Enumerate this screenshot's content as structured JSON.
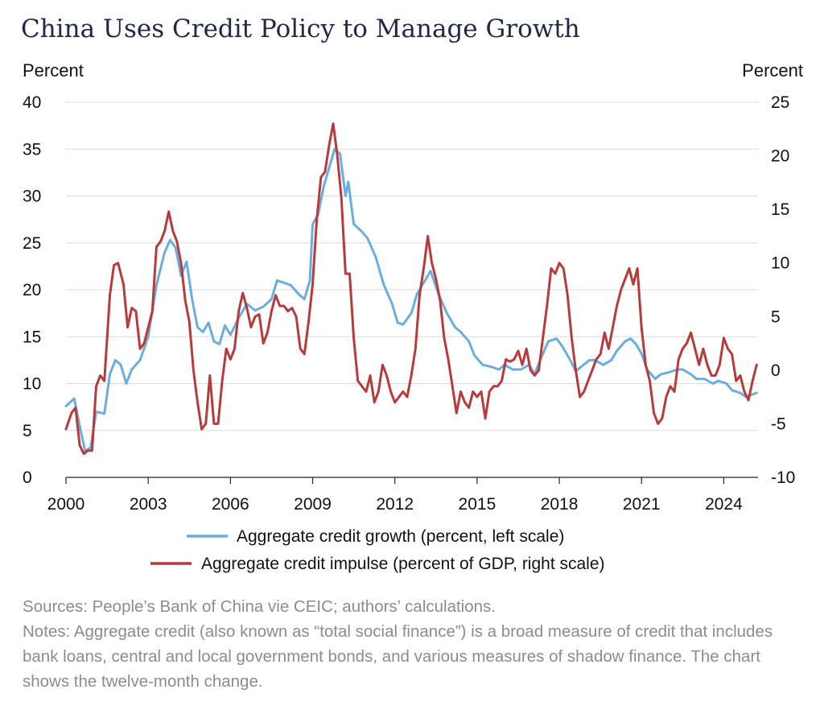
{
  "title": "China Uses Credit Policy to Manage Growth",
  "sources": "Sources: People’s Bank of China vie CEIC; authors’ calculations.",
  "notes": "Notes: Aggregate credit (also known as “total social finance”) is a broad measure of credit that includes bank loans, central and local government bonds, and various measures of shadow finance. The chart shows the twelve-month change.",
  "colors": {
    "growth": "#6aaee0",
    "impulse": "#b83a3a",
    "grid": "#dcdcdc",
    "axis": "#222222"
  },
  "chart_data": {
    "type": "line",
    "grid": true,
    "legend_position": "bottom",
    "left_axis": {
      "label": "Percent",
      "range": [
        0,
        40
      ],
      "ticks": [
        0,
        5,
        10,
        15,
        20,
        25,
        30,
        35,
        40
      ]
    },
    "right_axis": {
      "label": "Percent",
      "range": [
        -10,
        25
      ],
      "ticks": [
        -10,
        -5,
        0,
        5,
        10,
        15,
        20,
        25
      ]
    },
    "x_axis": {
      "range": [
        2000,
        2025.25
      ],
      "ticks": [
        "2000",
        "2003",
        "2006",
        "2009",
        "2012",
        "2015",
        "2018",
        "2021",
        "2024"
      ]
    },
    "series": [
      {
        "name": "Aggregate credit growth (percent, left scale)",
        "axis": "left",
        "points": [
          [
            2000.0,
            7.6
          ],
          [
            2000.3,
            8.4
          ],
          [
            2000.5,
            5.5
          ],
          [
            2000.7,
            2.8
          ],
          [
            2000.9,
            3.2
          ],
          [
            2001.1,
            7.0
          ],
          [
            2001.4,
            6.8
          ],
          [
            2001.6,
            11.0
          ],
          [
            2001.8,
            12.5
          ],
          [
            2002.0,
            12.0
          ],
          [
            2002.2,
            10.0
          ],
          [
            2002.4,
            11.5
          ],
          [
            2002.7,
            12.5
          ],
          [
            2003.0,
            15.0
          ],
          [
            2003.3,
            20.5
          ],
          [
            2003.6,
            24.0
          ],
          [
            2003.8,
            25.3
          ],
          [
            2004.0,
            24.5
          ],
          [
            2004.2,
            21.5
          ],
          [
            2004.4,
            23.0
          ],
          [
            2004.6,
            19.0
          ],
          [
            2004.8,
            16.0
          ],
          [
            2005.0,
            15.5
          ],
          [
            2005.2,
            16.5
          ],
          [
            2005.4,
            14.5
          ],
          [
            2005.6,
            14.2
          ],
          [
            2005.8,
            16.2
          ],
          [
            2006.0,
            15.2
          ],
          [
            2006.3,
            17.0
          ],
          [
            2006.6,
            18.5
          ],
          [
            2006.9,
            17.8
          ],
          [
            2007.2,
            18.2
          ],
          [
            2007.5,
            19.0
          ],
          [
            2007.7,
            21.0
          ],
          [
            2007.9,
            20.8
          ],
          [
            2008.2,
            20.5
          ],
          [
            2008.5,
            19.5
          ],
          [
            2008.7,
            19.0
          ],
          [
            2008.9,
            21.0
          ],
          [
            2009.0,
            27.0
          ],
          [
            2009.2,
            28.0
          ],
          [
            2009.4,
            31.0
          ],
          [
            2009.6,
            33.0
          ],
          [
            2009.8,
            35.0
          ],
          [
            2010.0,
            34.5
          ],
          [
            2010.2,
            30.0
          ],
          [
            2010.3,
            31.5
          ],
          [
            2010.5,
            27.0
          ],
          [
            2010.8,
            26.2
          ],
          [
            2011.0,
            25.5
          ],
          [
            2011.3,
            23.5
          ],
          [
            2011.6,
            20.5
          ],
          [
            2011.9,
            18.5
          ],
          [
            2012.1,
            16.5
          ],
          [
            2012.3,
            16.3
          ],
          [
            2012.6,
            17.5
          ],
          [
            2012.8,
            19.5
          ],
          [
            2013.1,
            21.0
          ],
          [
            2013.3,
            22.0
          ],
          [
            2013.6,
            19.5
          ],
          [
            2013.9,
            17.5
          ],
          [
            2014.2,
            16.0
          ],
          [
            2014.4,
            15.5
          ],
          [
            2014.7,
            14.5
          ],
          [
            2014.9,
            13.0
          ],
          [
            2015.2,
            12.0
          ],
          [
            2015.5,
            11.8
          ],
          [
            2015.8,
            11.5
          ],
          [
            2016.0,
            12.0
          ],
          [
            2016.3,
            11.5
          ],
          [
            2016.6,
            11.5
          ],
          [
            2016.9,
            12.0
          ],
          [
            2017.1,
            11.0
          ],
          [
            2017.3,
            12.5
          ],
          [
            2017.6,
            14.5
          ],
          [
            2017.9,
            14.8
          ],
          [
            2018.1,
            14.0
          ],
          [
            2018.4,
            12.5
          ],
          [
            2018.6,
            11.3
          ],
          [
            2018.8,
            11.8
          ],
          [
            2019.1,
            12.5
          ],
          [
            2019.3,
            12.5
          ],
          [
            2019.6,
            12.0
          ],
          [
            2019.9,
            12.5
          ],
          [
            2020.1,
            13.5
          ],
          [
            2020.4,
            14.5
          ],
          [
            2020.6,
            14.8
          ],
          [
            2020.8,
            14.2
          ],
          [
            2021.0,
            13.2
          ],
          [
            2021.2,
            11.5
          ],
          [
            2021.5,
            10.5
          ],
          [
            2021.7,
            11.0
          ],
          [
            2022.0,
            11.2
          ],
          [
            2022.3,
            11.5
          ],
          [
            2022.5,
            11.5
          ],
          [
            2022.8,
            11.0
          ],
          [
            2023.0,
            10.5
          ],
          [
            2023.3,
            10.5
          ],
          [
            2023.6,
            10.0
          ],
          [
            2023.8,
            10.3
          ],
          [
            2024.1,
            10.0
          ],
          [
            2024.3,
            9.3
          ],
          [
            2024.6,
            9.0
          ],
          [
            2024.8,
            8.6
          ],
          [
            2025.0,
            8.8
          ],
          [
            2025.2,
            9.0
          ]
        ]
      },
      {
        "name": "Aggregate credit impulse (percent of GDP, right scale)",
        "axis": "right",
        "points": [
          [
            2000.0,
            -5.5
          ],
          [
            2000.2,
            -4.0
          ],
          [
            2000.35,
            -3.5
          ],
          [
            2000.5,
            -7.0
          ],
          [
            2000.65,
            -7.8
          ],
          [
            2000.8,
            -7.5
          ],
          [
            2000.95,
            -7.5
          ],
          [
            2001.1,
            -1.5
          ],
          [
            2001.25,
            -0.5
          ],
          [
            2001.4,
            -1.0
          ],
          [
            2001.6,
            7.0
          ],
          [
            2001.75,
            9.8
          ],
          [
            2001.9,
            10.0
          ],
          [
            2002.1,
            8.0
          ],
          [
            2002.25,
            4.0
          ],
          [
            2002.4,
            5.8
          ],
          [
            2002.55,
            5.5
          ],
          [
            2002.7,
            2.0
          ],
          [
            2002.85,
            2.5
          ],
          [
            2003.0,
            4.0
          ],
          [
            2003.15,
            5.5
          ],
          [
            2003.3,
            11.5
          ],
          [
            2003.45,
            12.0
          ],
          [
            2003.6,
            13.0
          ],
          [
            2003.75,
            14.8
          ],
          [
            2003.9,
            13.0
          ],
          [
            2004.05,
            12.0
          ],
          [
            2004.2,
            10.0
          ],
          [
            2004.35,
            6.5
          ],
          [
            2004.5,
            4.5
          ],
          [
            2004.65,
            0.0
          ],
          [
            2004.8,
            -3.0
          ],
          [
            2004.95,
            -5.5
          ],
          [
            2005.1,
            -5.0
          ],
          [
            2005.25,
            -0.5
          ],
          [
            2005.4,
            -5.0
          ],
          [
            2005.55,
            -5.0
          ],
          [
            2005.7,
            -1.0
          ],
          [
            2005.85,
            2.0
          ],
          [
            2006.0,
            1.0
          ],
          [
            2006.15,
            2.0
          ],
          [
            2006.3,
            5.5
          ],
          [
            2006.45,
            7.2
          ],
          [
            2006.6,
            5.8
          ],
          [
            2006.75,
            4.0
          ],
          [
            2006.9,
            5.0
          ],
          [
            2007.05,
            5.2
          ],
          [
            2007.2,
            2.5
          ],
          [
            2007.35,
            3.5
          ],
          [
            2007.5,
            5.5
          ],
          [
            2007.65,
            7.0
          ],
          [
            2007.8,
            6.0
          ],
          [
            2007.95,
            6.0
          ],
          [
            2008.1,
            5.5
          ],
          [
            2008.25,
            5.8
          ],
          [
            2008.4,
            5.0
          ],
          [
            2008.55,
            2.0
          ],
          [
            2008.7,
            1.5
          ],
          [
            2008.85,
            4.5
          ],
          [
            2009.0,
            8.0
          ],
          [
            2009.15,
            14.0
          ],
          [
            2009.3,
            18.0
          ],
          [
            2009.45,
            18.5
          ],
          [
            2009.6,
            21.0
          ],
          [
            2009.75,
            23.0
          ],
          [
            2009.9,
            20.0
          ],
          [
            2010.05,
            16.0
          ],
          [
            2010.2,
            9.0
          ],
          [
            2010.35,
            9.0
          ],
          [
            2010.5,
            3.0
          ],
          [
            2010.65,
            -1.0
          ],
          [
            2010.8,
            -1.5
          ],
          [
            2010.95,
            -2.0
          ],
          [
            2011.1,
            -0.5
          ],
          [
            2011.25,
            -3.0
          ],
          [
            2011.4,
            -2.0
          ],
          [
            2011.55,
            0.5
          ],
          [
            2011.7,
            -0.5
          ],
          [
            2011.85,
            -2.0
          ],
          [
            2012.0,
            -3.0
          ],
          [
            2012.15,
            -2.5
          ],
          [
            2012.3,
            -2.0
          ],
          [
            2012.45,
            -2.5
          ],
          [
            2012.6,
            -0.5
          ],
          [
            2012.75,
            2.0
          ],
          [
            2012.9,
            7.0
          ],
          [
            2013.05,
            9.5
          ],
          [
            2013.2,
            12.5
          ],
          [
            2013.35,
            10.0
          ],
          [
            2013.5,
            8.5
          ],
          [
            2013.65,
            6.5
          ],
          [
            2013.8,
            3.0
          ],
          [
            2013.95,
            1.0
          ],
          [
            2014.1,
            -1.5
          ],
          [
            2014.25,
            -4.0
          ],
          [
            2014.4,
            -2.0
          ],
          [
            2014.55,
            -3.0
          ],
          [
            2014.7,
            -3.5
          ],
          [
            2014.85,
            -2.0
          ],
          [
            2015.0,
            -2.5
          ],
          [
            2015.15,
            -2.0
          ],
          [
            2015.3,
            -4.5
          ],
          [
            2015.45,
            -2.0
          ],
          [
            2015.6,
            -1.5
          ],
          [
            2015.75,
            -1.5
          ],
          [
            2015.9,
            -1.0
          ],
          [
            2016.05,
            1.0
          ],
          [
            2016.2,
            0.8
          ],
          [
            2016.35,
            1.0
          ],
          [
            2016.5,
            1.8
          ],
          [
            2016.65,
            0.5
          ],
          [
            2016.8,
            2.0
          ],
          [
            2016.95,
            0.0
          ],
          [
            2017.1,
            -0.5
          ],
          [
            2017.25,
            0.0
          ],
          [
            2017.4,
            3.0
          ],
          [
            2017.55,
            6.0
          ],
          [
            2017.7,
            9.5
          ],
          [
            2017.85,
            9.0
          ],
          [
            2018.0,
            10.0
          ],
          [
            2018.15,
            9.5
          ],
          [
            2018.3,
            7.0
          ],
          [
            2018.45,
            3.0
          ],
          [
            2018.6,
            0.0
          ],
          [
            2018.75,
            -2.5
          ],
          [
            2018.9,
            -2.0
          ],
          [
            2019.05,
            -1.0
          ],
          [
            2019.2,
            0.0
          ],
          [
            2019.35,
            1.0
          ],
          [
            2019.5,
            1.5
          ],
          [
            2019.65,
            3.5
          ],
          [
            2019.8,
            2.0
          ],
          [
            2019.95,
            4.0
          ],
          [
            2020.1,
            6.0
          ],
          [
            2020.25,
            7.5
          ],
          [
            2020.4,
            8.5
          ],
          [
            2020.55,
            9.5
          ],
          [
            2020.7,
            8.0
          ],
          [
            2020.85,
            9.5
          ],
          [
            2021.0,
            4.0
          ],
          [
            2021.15,
            0.5
          ],
          [
            2021.3,
            -1.0
          ],
          [
            2021.45,
            -4.0
          ],
          [
            2021.6,
            -5.0
          ],
          [
            2021.75,
            -4.5
          ],
          [
            2021.9,
            -2.5
          ],
          [
            2022.05,
            -1.5
          ],
          [
            2022.2,
            -2.0
          ],
          [
            2022.35,
            1.0
          ],
          [
            2022.5,
            2.0
          ],
          [
            2022.65,
            2.5
          ],
          [
            2022.8,
            3.5
          ],
          [
            2022.95,
            2.0
          ],
          [
            2023.1,
            0.5
          ],
          [
            2023.25,
            2.0
          ],
          [
            2023.4,
            0.5
          ],
          [
            2023.55,
            -0.5
          ],
          [
            2023.7,
            -0.5
          ],
          [
            2023.85,
            0.5
          ],
          [
            2024.0,
            3.0
          ],
          [
            2024.15,
            2.0
          ],
          [
            2024.3,
            1.5
          ],
          [
            2024.45,
            -1.0
          ],
          [
            2024.6,
            -0.5
          ],
          [
            2024.75,
            -2.0
          ],
          [
            2024.9,
            -2.8
          ],
          [
            2025.05,
            -1.0
          ],
          [
            2025.2,
            0.5
          ]
        ]
      }
    ]
  }
}
